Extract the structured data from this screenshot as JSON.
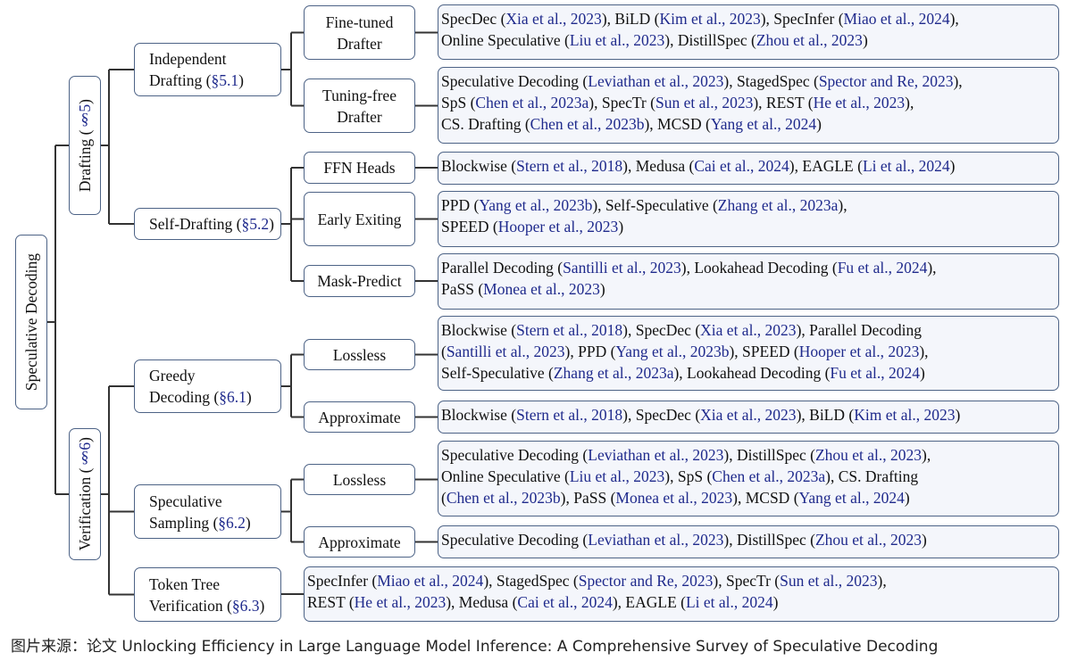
{
  "colors": {
    "border": "#4d6386",
    "leaf_fill": "#f4f6fb",
    "citation": "#1f2a8c",
    "connector": "#333333"
  },
  "root": {
    "label": [
      [
        "Speculative Decoding"
      ]
    ]
  },
  "level1": [
    {
      "label": [
        [
          "Drafting (",
          "§5",
          ")"
        ]
      ]
    },
    {
      "label": [
        [
          "Verification (",
          "§6",
          ")"
        ]
      ]
    }
  ],
  "level2": [
    {
      "label": [
        [
          "Independent"
        ],
        [
          "Drafting (",
          "§5.1",
          ")"
        ]
      ]
    },
    {
      "label": [
        [
          "Self-Drafting (",
          "§5.2",
          ")"
        ]
      ]
    },
    {
      "label": [
        [
          "Greedy"
        ],
        [
          "Decoding (",
          "§6.1",
          ")"
        ]
      ]
    },
    {
      "label": [
        [
          "Speculative"
        ],
        [
          "Sampling (",
          "§6.2",
          ")"
        ]
      ]
    },
    {
      "label": [
        [
          "Token Tree"
        ],
        [
          "Verification (",
          "§6.3",
          ")"
        ]
      ]
    }
  ],
  "level3": [
    {
      "label": [
        [
          "Fine-tuned"
        ],
        [
          "Drafter"
        ]
      ]
    },
    {
      "label": [
        [
          "Tuning-free"
        ],
        [
          "Drafter"
        ]
      ]
    },
    {
      "label": [
        [
          "FFN Heads"
        ]
      ]
    },
    {
      "label": [
        [
          "Early Exiting"
        ]
      ]
    },
    {
      "label": [
        [
          "Mask-Predict"
        ]
      ]
    },
    {
      "label": [
        [
          "Lossless"
        ]
      ]
    },
    {
      "label": [
        [
          "Approximate"
        ]
      ]
    },
    {
      "label": [
        [
          "Lossless"
        ]
      ]
    },
    {
      "label": [
        [
          "Approximate"
        ]
      ]
    }
  ],
  "leaves": [
    {
      "lines": [
        [
          "SpecDec (",
          "Xia et al., 2023",
          "), BiLD (",
          "Kim et al., 2023",
          "), SpecInfer (",
          "Miao et al., 2024",
          "),"
        ],
        [
          "Online Speculative (",
          "Liu et al., 2023",
          "), DistillSpec (",
          "Zhou et al., 2023",
          ")"
        ]
      ]
    },
    {
      "lines": [
        [
          "Speculative Decoding (",
          "Leviathan et al., 2023",
          "), StagedSpec (",
          "Spector and Re, 2023",
          "),"
        ],
        [
          "SpS (",
          "Chen et al., 2023a",
          "), SpecTr (",
          "Sun et al., 2023",
          "), REST (",
          "He et al., 2023",
          "),"
        ],
        [
          "CS. Drafting (",
          "Chen et al., 2023b",
          "), MCSD (",
          "Yang et al., 2024",
          ")"
        ]
      ]
    },
    {
      "lines": [
        [
          "Blockwise (",
          "Stern et al., 2018",
          "), Medusa (",
          "Cai et al., 2024",
          "), EAGLE (",
          "Li et al., 2024",
          ")"
        ]
      ]
    },
    {
      "lines": [
        [
          "PPD (",
          "Yang et al., 2023b",
          "), Self-Speculative (",
          "Zhang et al., 2023a",
          "),"
        ],
        [
          "SPEED (",
          "Hooper et al., 2023",
          ")"
        ]
      ]
    },
    {
      "lines": [
        [
          "Parallel Decoding (",
          "Santilli et al., 2023",
          "), Lookahead Decoding (",
          "Fu et al., 2024",
          "),"
        ],
        [
          "PaSS (",
          "Monea et al., 2023",
          ")"
        ]
      ]
    },
    {
      "lines": [
        [
          "Blockwise (",
          "Stern et al., 2018",
          "), SpecDec (",
          "Xia et al., 2023",
          "), Parallel Decoding"
        ],
        [
          "(",
          "Santilli et al., 2023",
          "), PPD (",
          "Yang et al., 2023b",
          "), SPEED (",
          "Hooper et al., 2023",
          "),"
        ],
        [
          "Self-Speculative (",
          "Zhang et al., 2023a",
          "), Lookahead Decoding (",
          "Fu et al., 2024",
          ")"
        ]
      ]
    },
    {
      "lines": [
        [
          "Blockwise (",
          "Stern et al., 2018",
          "), SpecDec (",
          "Xia et al., 2023",
          "), BiLD (",
          "Kim et al., 2023",
          ")"
        ]
      ]
    },
    {
      "lines": [
        [
          "Speculative Decoding (",
          "Leviathan et al., 2023",
          "), DistillSpec (",
          "Zhou et al., 2023",
          "),"
        ],
        [
          "Online Speculative (",
          "Liu et al., 2023",
          "), SpS (",
          "Chen et al., 2023a",
          "), CS. Drafting"
        ],
        [
          "(",
          "Chen et al., 2023b",
          "), PaSS (",
          "Monea et al., 2023",
          "), MCSD (",
          "Yang et al., 2024",
          ")"
        ]
      ]
    },
    {
      "lines": [
        [
          "Speculative Decoding (",
          "Leviathan et al., 2023",
          "), DistillSpec (",
          "Zhou et al., 2023",
          ")"
        ]
      ]
    },
    {
      "lines": [
        [
          "SpecInfer (",
          "Miao et al., 2024",
          "), StagedSpec (",
          "Spector and Re, 2023",
          "), SpecTr (",
          "Sun et al., 2023",
          "),"
        ],
        [
          "REST (",
          "He et al., 2023",
          "), Medusa (",
          "Cai et al., 2024",
          "), EAGLE (",
          "Li et al., 2024",
          ")"
        ]
      ]
    }
  ],
  "caption": "图片来源：论文 Unlocking Efficiency in Large Language Model Inference: A Comprehensive Survey of Speculative Decoding"
}
